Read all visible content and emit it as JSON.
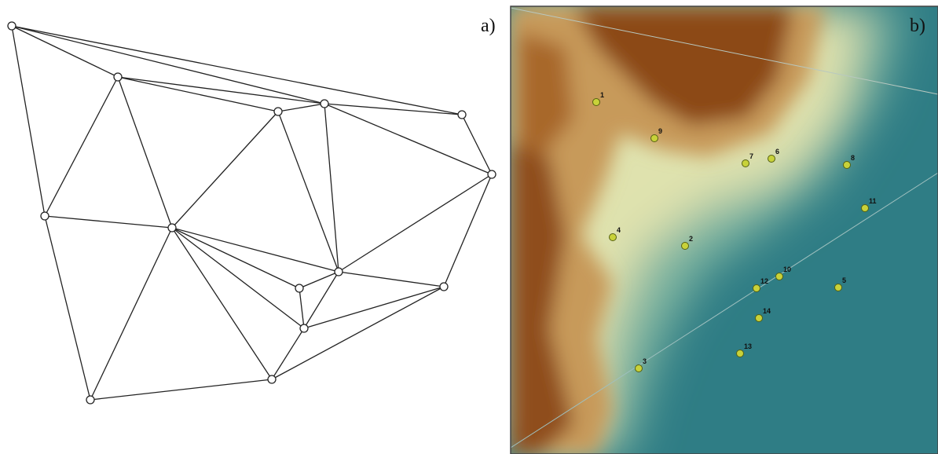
{
  "panel_a": {
    "label": "a)"
  },
  "panel_b": {
    "label": "b)",
    "points": [
      {
        "label": "1"
      },
      {
        "label": "9"
      },
      {
        "label": "7"
      },
      {
        "label": "6"
      },
      {
        "label": "8"
      },
      {
        "label": "11"
      },
      {
        "label": "4"
      },
      {
        "label": "2"
      },
      {
        "label": "10"
      },
      {
        "label": "12"
      },
      {
        "label": "5"
      },
      {
        "label": "14"
      },
      {
        "label": "13"
      },
      {
        "label": "3"
      }
    ]
  }
}
